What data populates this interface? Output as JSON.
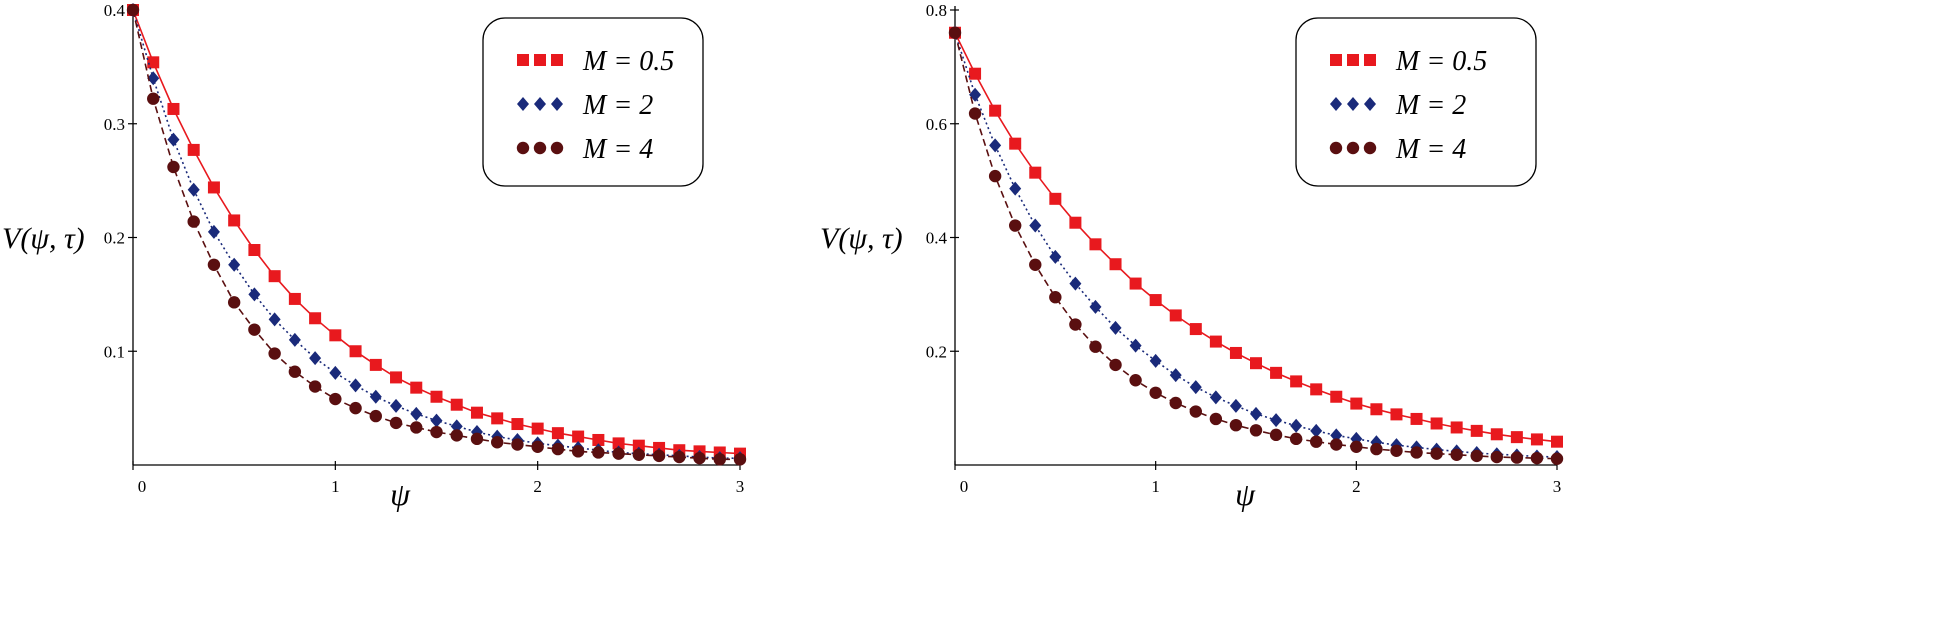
{
  "chart_data": [
    {
      "type": "line",
      "title": "",
      "xlabel": "ψ",
      "ylabel": "V(ψ, τ)",
      "xlim": [
        0,
        3
      ],
      "ylim": [
        0,
        0.4
      ],
      "grid": false,
      "legend_position": "top-right",
      "x_ticks": [
        0,
        1,
        2,
        3
      ],
      "x_tick_labels": [
        "0",
        "1",
        "2",
        "3"
      ],
      "y_ticks": [
        0.1,
        0.2,
        0.3,
        0.4
      ],
      "y_tick_labels": [
        "0.1",
        "0.2",
        "0.3",
        "0.4"
      ],
      "series": [
        {
          "name": "M = 0.5",
          "color": "#e8191e",
          "marker": "square",
          "line": "solid",
          "x": [
            0.0,
            0.1,
            0.2,
            0.3,
            0.4,
            0.5,
            0.6,
            0.7,
            0.8,
            0.9,
            1.0,
            1.1,
            1.2,
            1.3,
            1.4,
            1.5,
            1.6,
            1.7,
            1.8,
            1.9,
            2.0,
            2.1,
            2.2,
            2.3,
            2.4,
            2.5,
            2.6,
            2.7,
            2.8,
            2.9,
            3.0
          ],
          "values": [
            0.4,
            0.354,
            0.313,
            0.277,
            0.244,
            0.215,
            0.189,
            0.166,
            0.146,
            0.129,
            0.114,
            0.1,
            0.088,
            0.077,
            0.068,
            0.06,
            0.053,
            0.046,
            0.041,
            0.036,
            0.032,
            0.028,
            0.025,
            0.022,
            0.019,
            0.017,
            0.015,
            0.013,
            0.012,
            0.011,
            0.01
          ]
        },
        {
          "name": "M = 2",
          "color": "#1a2a7a",
          "marker": "diamond",
          "line": "dotted",
          "x": [
            0.0,
            0.1,
            0.2,
            0.3,
            0.4,
            0.5,
            0.6,
            0.7,
            0.8,
            0.9,
            1.0,
            1.1,
            1.2,
            1.3,
            1.4,
            1.5,
            1.6,
            1.7,
            1.8,
            1.9,
            2.0,
            2.1,
            2.2,
            2.3,
            2.4,
            2.5,
            2.6,
            2.7,
            2.8,
            2.9,
            3.0
          ],
          "values": [
            0.4,
            0.34,
            0.286,
            0.242,
            0.205,
            0.176,
            0.15,
            0.128,
            0.11,
            0.094,
            0.081,
            0.07,
            0.06,
            0.052,
            0.045,
            0.039,
            0.034,
            0.029,
            0.025,
            0.022,
            0.019,
            0.017,
            0.015,
            0.013,
            0.011,
            0.01,
            0.009,
            0.008,
            0.007,
            0.006,
            0.006
          ]
        },
        {
          "name": "M = 4",
          "color": "#5a0f10",
          "marker": "circle",
          "line": "dashed",
          "x": [
            0.0,
            0.1,
            0.2,
            0.3,
            0.4,
            0.5,
            0.6,
            0.7,
            0.8,
            0.9,
            1.0,
            1.1,
            1.2,
            1.3,
            1.4,
            1.5,
            1.6,
            1.7,
            1.8,
            1.9,
            2.0,
            2.1,
            2.2,
            2.3,
            2.4,
            2.5,
            2.6,
            2.7,
            2.8,
            2.9,
            3.0
          ],
          "values": [
            0.4,
            0.322,
            0.262,
            0.214,
            0.176,
            0.143,
            0.119,
            0.098,
            0.082,
            0.069,
            0.058,
            0.05,
            0.043,
            0.037,
            0.033,
            0.029,
            0.026,
            0.023,
            0.02,
            0.018,
            0.016,
            0.014,
            0.012,
            0.011,
            0.01,
            0.009,
            0.008,
            0.007,
            0.006,
            0.005,
            0.005
          ]
        }
      ]
    },
    {
      "type": "line",
      "title": "",
      "xlabel": "ψ",
      "ylabel": "V(ψ, τ)",
      "xlim": [
        0,
        3
      ],
      "ylim": [
        0,
        0.8
      ],
      "grid": false,
      "legend_position": "top-right",
      "x_ticks": [
        0,
        1,
        2,
        3
      ],
      "x_tick_labels": [
        "0",
        "1",
        "2",
        "3"
      ],
      "y_ticks": [
        0.2,
        0.4,
        0.6,
        0.8
      ],
      "y_tick_labels": [
        "0.2",
        "0.4",
        "0.6",
        "0.8"
      ],
      "series": [
        {
          "name": "M = 0.5",
          "color": "#e8191e",
          "marker": "square",
          "line": "solid",
          "x": [
            0.0,
            0.1,
            0.2,
            0.3,
            0.4,
            0.5,
            0.6,
            0.7,
            0.8,
            0.9,
            1.0,
            1.1,
            1.2,
            1.3,
            1.4,
            1.5,
            1.6,
            1.7,
            1.8,
            1.9,
            2.0,
            2.1,
            2.2,
            2.3,
            2.4,
            2.5,
            2.6,
            2.7,
            2.8,
            2.9,
            3.0
          ],
          "values": [
            0.76,
            0.688,
            0.623,
            0.565,
            0.514,
            0.468,
            0.426,
            0.388,
            0.353,
            0.319,
            0.29,
            0.263,
            0.239,
            0.217,
            0.197,
            0.179,
            0.162,
            0.147,
            0.133,
            0.12,
            0.108,
            0.098,
            0.089,
            0.081,
            0.073,
            0.066,
            0.06,
            0.054,
            0.049,
            0.045,
            0.041
          ]
        },
        {
          "name": "M = 2",
          "color": "#1a2a7a",
          "marker": "diamond",
          "line": "dotted",
          "x": [
            0.0,
            0.1,
            0.2,
            0.3,
            0.4,
            0.5,
            0.6,
            0.7,
            0.8,
            0.9,
            1.0,
            1.1,
            1.2,
            1.3,
            1.4,
            1.5,
            1.6,
            1.7,
            1.8,
            1.9,
            2.0,
            2.1,
            2.2,
            2.3,
            2.4,
            2.5,
            2.6,
            2.7,
            2.8,
            2.9,
            3.0
          ],
          "values": [
            0.76,
            0.651,
            0.562,
            0.486,
            0.421,
            0.366,
            0.319,
            0.278,
            0.241,
            0.21,
            0.183,
            0.158,
            0.137,
            0.119,
            0.104,
            0.09,
            0.079,
            0.069,
            0.06,
            0.052,
            0.046,
            0.04,
            0.035,
            0.031,
            0.027,
            0.024,
            0.021,
            0.019,
            0.017,
            0.015,
            0.014
          ]
        },
        {
          "name": "M = 4",
          "color": "#5a0f10",
          "marker": "circle",
          "line": "dashed",
          "x": [
            0.0,
            0.1,
            0.2,
            0.3,
            0.4,
            0.5,
            0.6,
            0.7,
            0.8,
            0.9,
            1.0,
            1.1,
            1.2,
            1.3,
            1.4,
            1.5,
            1.6,
            1.7,
            1.8,
            1.9,
            2.0,
            2.1,
            2.2,
            2.3,
            2.4,
            2.5,
            2.6,
            2.7,
            2.8,
            2.9,
            3.0
          ],
          "values": [
            0.76,
            0.618,
            0.508,
            0.421,
            0.352,
            0.295,
            0.247,
            0.208,
            0.176,
            0.149,
            0.127,
            0.109,
            0.094,
            0.081,
            0.07,
            0.061,
            0.053,
            0.046,
            0.041,
            0.036,
            0.032,
            0.028,
            0.025,
            0.022,
            0.02,
            0.018,
            0.016,
            0.014,
            0.013,
            0.012,
            0.011
          ]
        }
      ]
    }
  ]
}
